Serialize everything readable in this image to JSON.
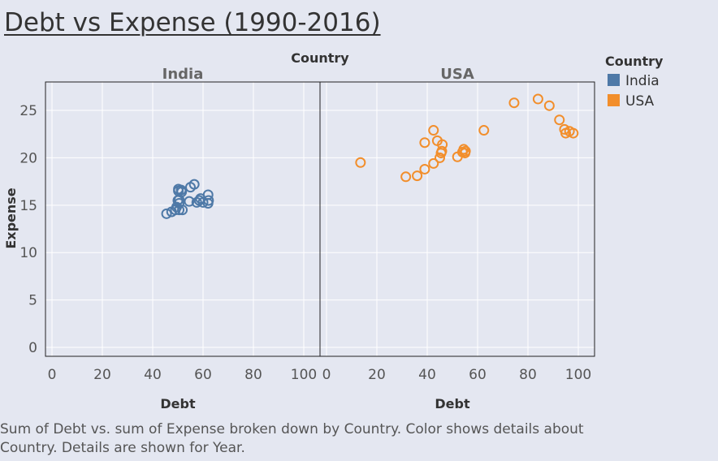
{
  "title": "Debt vs Expense (1990-2016)",
  "caption_line1": "Sum of Debt vs. sum of Expense broken down by Country.  Color shows details about",
  "caption_line2": "Country.  Details are shown for Year.",
  "chart_data": {
    "type": "scatter",
    "column_header": "Country",
    "xlabel": "Debt",
    "ylabel": "Expense",
    "xlim": [
      0,
      100
    ],
    "ylim": [
      0,
      28
    ],
    "x_ticks": [
      "0",
      "20",
      "40",
      "60",
      "80",
      "100"
    ],
    "y_ticks": [
      "0",
      "5",
      "10",
      "15",
      "20",
      "25"
    ],
    "legend": {
      "title": "Country",
      "placement": "top-right",
      "entries": [
        {
          "label": "India",
          "color": "#4e79a7"
        },
        {
          "label": "USA",
          "color": "#f28e2b"
        }
      ]
    },
    "marker": "hollow-circle",
    "grid": true,
    "panels": [
      {
        "label": "India",
        "color": "#4e79a7",
        "points": [
          {
            "x": 45.5,
            "y": 14.1
          },
          {
            "x": 47.5,
            "y": 14.3
          },
          {
            "x": 49.0,
            "y": 14.5
          },
          {
            "x": 50.5,
            "y": 14.5
          },
          {
            "x": 51.8,
            "y": 14.5
          },
          {
            "x": 49.5,
            "y": 14.8
          },
          {
            "x": 50.5,
            "y": 15.2
          },
          {
            "x": 50.0,
            "y": 15.5
          },
          {
            "x": 50.5,
            "y": 15.6
          },
          {
            "x": 50.2,
            "y": 16.5
          },
          {
            "x": 51.5,
            "y": 16.4
          },
          {
            "x": 50.2,
            "y": 16.7
          },
          {
            "x": 51.3,
            "y": 16.6
          },
          {
            "x": 54.5,
            "y": 15.4
          },
          {
            "x": 57.5,
            "y": 15.3
          },
          {
            "x": 58.5,
            "y": 15.5
          },
          {
            "x": 59.0,
            "y": 15.7
          },
          {
            "x": 60.0,
            "y": 15.3
          },
          {
            "x": 62.0,
            "y": 15.2
          },
          {
            "x": 62.2,
            "y": 15.5
          },
          {
            "x": 62.0,
            "y": 16.1
          },
          {
            "x": 55.0,
            "y": 16.9
          },
          {
            "x": 56.5,
            "y": 17.2
          }
        ]
      },
      {
        "label": "USA",
        "color": "#f28e2b",
        "points": [
          {
            "x": 13.5,
            "y": 19.5
          },
          {
            "x": 31.5,
            "y": 18.0
          },
          {
            "x": 36.0,
            "y": 18.1
          },
          {
            "x": 39.0,
            "y": 18.8
          },
          {
            "x": 42.5,
            "y": 19.4
          },
          {
            "x": 45.0,
            "y": 20.0
          },
          {
            "x": 45.5,
            "y": 20.5
          },
          {
            "x": 45.8,
            "y": 20.7
          },
          {
            "x": 39.0,
            "y": 21.6
          },
          {
            "x": 44.0,
            "y": 21.8
          },
          {
            "x": 46.0,
            "y": 21.4
          },
          {
            "x": 42.5,
            "y": 22.9
          },
          {
            "x": 52.0,
            "y": 20.1
          },
          {
            "x": 54.0,
            "y": 20.6
          },
          {
            "x": 54.5,
            "y": 20.9
          },
          {
            "x": 55.0,
            "y": 20.5
          },
          {
            "x": 55.2,
            "y": 20.7
          },
          {
            "x": 62.5,
            "y": 22.9
          },
          {
            "x": 74.5,
            "y": 25.8
          },
          {
            "x": 84.0,
            "y": 26.2
          },
          {
            "x": 88.5,
            "y": 25.5
          },
          {
            "x": 92.5,
            "y": 24.0
          },
          {
            "x": 94.5,
            "y": 23.0
          },
          {
            "x": 95.0,
            "y": 22.6
          },
          {
            "x": 96.5,
            "y": 22.8
          },
          {
            "x": 98.0,
            "y": 22.6
          }
        ]
      }
    ]
  }
}
